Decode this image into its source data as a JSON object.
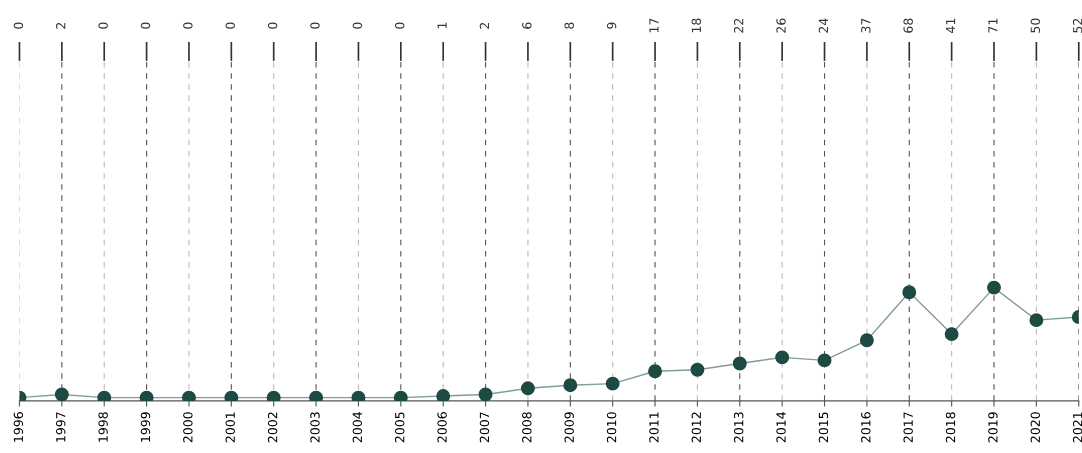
{
  "chart_data": {
    "type": "line",
    "categories": [
      "1996",
      "1997",
      "1998",
      "1999",
      "2000",
      "2001",
      "2002",
      "2003",
      "2004",
      "2005",
      "2006",
      "2007",
      "2008",
      "2009",
      "2010",
      "2011",
      "2012",
      "2013",
      "2014",
      "2015",
      "2016",
      "2017",
      "2018",
      "2019",
      "2020",
      "2021"
    ],
    "series": [
      {
        "color": "#1d4a42",
        "values": [
          0,
          2,
          0,
          0,
          0,
          0,
          0,
          0,
          0,
          0,
          1,
          2,
          6,
          8,
          9,
          17,
          18,
          22,
          26,
          24,
          37,
          68,
          41,
          71,
          50,
          52
        ]
      }
    ],
    "marker": "circle",
    "line_style": "solid",
    "data_labels": true,
    "grid": "x"
  }
}
